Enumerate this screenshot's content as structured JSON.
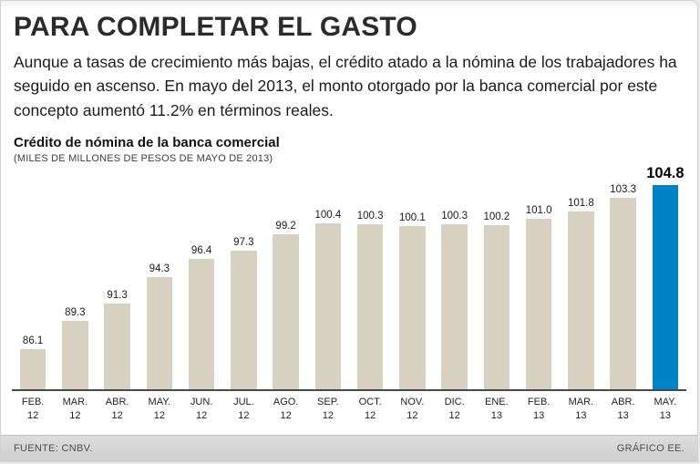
{
  "page": {
    "title": "PARA COMPLETAR EL GASTO",
    "intro": "Aunque a tasas de crecimiento más bajas, el crédito atado a la nómina de los trabajadores ha seguido en ascenso. En mayo del 2013, el monto otorgado por la banca comercial por este concepto aumentó 11.2% en términos reales.",
    "footer_left": "FUENTE: CNBV.",
    "footer_right": "GRÁFICO EE."
  },
  "chart_data": {
    "type": "bar",
    "title": "Crédito de nómina de la banca comercial",
    "subtitle": "(MILES DE MILLONES DE PESOS DE MAYO DE 2013)",
    "categories": [
      {
        "month": "FEB.",
        "year": "12"
      },
      {
        "month": "MAR.",
        "year": "12"
      },
      {
        "month": "ABR.",
        "year": "12"
      },
      {
        "month": "MAY.",
        "year": "12"
      },
      {
        "month": "JUN.",
        "year": "12"
      },
      {
        "month": "JUL.",
        "year": "12"
      },
      {
        "month": "AGO.",
        "year": "12"
      },
      {
        "month": "SEP.",
        "year": "12"
      },
      {
        "month": "OCT.",
        "year": "12"
      },
      {
        "month": "NOV.",
        "year": "12"
      },
      {
        "month": "DIC.",
        "year": "12"
      },
      {
        "month": "ENE.",
        "year": "13"
      },
      {
        "month": "FEB.",
        "year": "13"
      },
      {
        "month": "MAR.",
        "year": "13"
      },
      {
        "month": "ABR.",
        "year": "13"
      },
      {
        "month": "MAY.",
        "year": "13"
      }
    ],
    "values": [
      86.1,
      89.3,
      91.3,
      94.3,
      96.4,
      97.3,
      99.2,
      100.4,
      100.3,
      100.1,
      100.3,
      100.2,
      101.0,
      101.8,
      103.3,
      104.8
    ],
    "highlight_index": 15,
    "bar_color": "#d6d1c1",
    "highlight_color": "#0082c6",
    "axis_color": "#4a4a4a",
    "ylim": [
      81.5,
      105
    ],
    "grid": false,
    "legend_position": "none"
  }
}
